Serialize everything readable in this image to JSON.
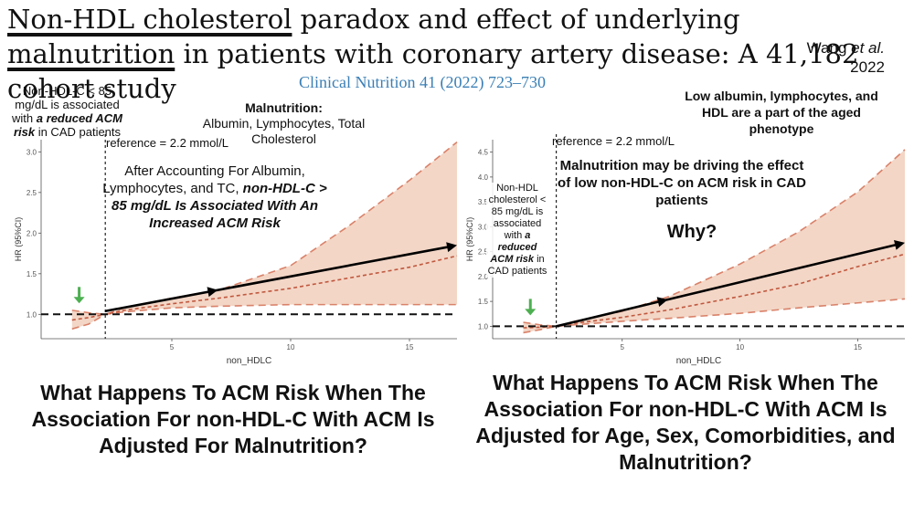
{
  "title": {
    "part1": "Non-HDL cholesterol",
    "part2": " paradox and effect of underlying ",
    "part3": "malnutrition",
    "part4": " in patients with coronary artery disease: A 41,182 cohort study"
  },
  "author": {
    "name": "Wang",
    "etal": "et al.",
    "year": "2022"
  },
  "journal": "Clinical Nutrition 41 (2022) 723–730",
  "left_note": {
    "line1": "Non-HDL-C < 85 mg/dL is associated with",
    "a": "a",
    "emph": "reduced ACM risk",
    "rest": " in CAD patients"
  },
  "malnutrition": {
    "heading": "Malnutrition:",
    "body": "Albumin, Lymphocytes, Total Cholesterol"
  },
  "right_top_note": "Low albumin, lymphocytes, and HDL are a part of the aged phenotype",
  "left_chart_text": {
    "reference": "reference = 2.2 mmol/L",
    "overlay_plain": "After Accounting For Albumin, Lymphocytes, and TC, ",
    "overlay_emph": "non-HDL-C > 85 mg/dL Is Associated With An Increased ACM Risk"
  },
  "right_chart_text": {
    "reference": "reference = 2.2 mmol/L",
    "overlay": "Malnutrition may be driving the effect of low non-HDL-C on ACM risk in CAD patients",
    "why": "Why?",
    "inner_plain": "Non-HDL cholesterol < 85 mg/dL is associated with ",
    "inner_a": "a",
    "inner_emph": "reduced ACM risk",
    "inner_rest": " in CAD patients"
  },
  "left_question": "What Happens To ACM Risk When The Association For non-HDL-C With ACM Is Adjusted For Malnutrition?",
  "right_question": "What Happens To ACM Risk When The Association For non-HDL-C With ACM Is Adjusted for Age, Sex, Comorbidities, and Malnutrition?",
  "colors": {
    "band": "#f3d6c6",
    "ci_line": "#d9826a",
    "curve": "#c0583f",
    "arrow_green": "#4caf50",
    "journal": "#3b7fb5"
  },
  "chart_data": [
    {
      "type": "line",
      "xlabel": "non_HDLC",
      "ylabel": "HR (95%CI)",
      "xlim": [
        -0.5,
        17
      ],
      "ylim": [
        0.7,
        3.15
      ],
      "xticks": [
        5,
        10,
        15
      ],
      "yticks": [
        1.0,
        1.5,
        2.0,
        2.5,
        3.0
      ],
      "ytick_labels": [
        "1.0",
        "1.5",
        "2.0",
        "2.5",
        "3.0"
      ],
      "reference_x": 2.2,
      "reference_hr": 1.0,
      "x": [
        0.8,
        1.5,
        2.2,
        3,
        5,
        7,
        10,
        12.5,
        15,
        17
      ],
      "hr": [
        0.93,
        0.96,
        1.0,
        1.05,
        1.13,
        1.2,
        1.32,
        1.45,
        1.58,
        1.72
      ],
      "ci_lower": [
        0.82,
        0.88,
        1.0,
        1.03,
        1.08,
        1.1,
        1.12,
        1.12,
        1.12,
        1.12
      ],
      "ci_upper": [
        1.05,
        1.02,
        1.0,
        1.08,
        1.2,
        1.3,
        1.6,
        2.1,
        2.65,
        3.12
      ],
      "trend_arrow": {
        "from": [
          2.2,
          1.04
        ],
        "to": [
          17,
          1.85
        ]
      }
    },
    {
      "type": "line",
      "xlabel": "non_HDLC",
      "ylabel": "HR (95%CI)",
      "xlim": [
        -0.5,
        17
      ],
      "ylim": [
        0.75,
        4.75
      ],
      "xticks": [
        5,
        10,
        15
      ],
      "yticks": [
        1.0,
        1.5,
        2.0,
        2.5,
        3.0,
        3.5,
        4.0,
        4.5
      ],
      "ytick_labels": [
        "1.0",
        "1.5",
        "2.0",
        "2.5",
        "3.0",
        "3.5",
        "4.0",
        "4.5"
      ],
      "reference_x": 2.2,
      "reference_hr": 1.0,
      "x": [
        0.8,
        1.5,
        2.2,
        3,
        5,
        7,
        10,
        12.5,
        15,
        17
      ],
      "hr": [
        0.97,
        0.98,
        1.0,
        1.06,
        1.18,
        1.33,
        1.6,
        1.85,
        2.2,
        2.45
      ],
      "ci_lower": [
        0.87,
        0.93,
        1.0,
        1.03,
        1.1,
        1.16,
        1.26,
        1.37,
        1.47,
        1.55
      ],
      "ci_upper": [
        1.08,
        1.03,
        1.0,
        1.1,
        1.3,
        1.6,
        2.25,
        2.9,
        3.7,
        4.55
      ],
      "trend_arrow": {
        "from": [
          2.2,
          1.0
        ],
        "to": [
          17,
          2.68
        ]
      }
    }
  ]
}
